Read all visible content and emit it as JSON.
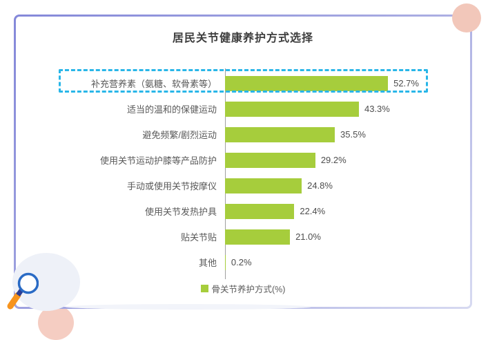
{
  "card": {
    "title": "居民关节健康养护方式选择"
  },
  "chart_data": {
    "type": "bar",
    "orientation": "horizontal",
    "title": "居民关节健康养护方式选择",
    "categories": [
      "补充营养素（氨糖、软骨素等）",
      "适当的温和的保健运动",
      "避免频繁/剧烈运动",
      "使用关节运动护膝等产品防护",
      "手动或使用关节按摩仪",
      "使用关节发热护具",
      "贴关节贴",
      "其他"
    ],
    "values": [
      52.7,
      43.3,
      35.5,
      29.2,
      24.8,
      22.4,
      21.0,
      0.2
    ],
    "value_labels": [
      "52.7%",
      "43.3%",
      "35.5%",
      "29.2%",
      "24.8%",
      "22.4%",
      "21.0%",
      "0.2%"
    ],
    "xlim": [
      0,
      55
    ],
    "grid": false,
    "legend_position": "bottom",
    "legend": [
      {
        "label": "骨关节养护方式(%)",
        "color": "#a6cd3c"
      }
    ],
    "bar_color": "#a6cd3c",
    "highlighted_category_index": 0,
    "highlight_box_color": "#29b6e8"
  },
  "decorations": {
    "magnifier_icon": "magnifier",
    "magnifier_ring_color": "#2a6bc5",
    "magnifier_connector_color": "#2b3f96",
    "magnifier_handle_color": "#f7941e",
    "pink_circle_color": "#f2c7ba",
    "pink_semicircle_color": "#f5cdc2",
    "blob_color": "#eef1f8",
    "card_border_gradient": [
      "#8488d9",
      "#d7daf1"
    ]
  }
}
